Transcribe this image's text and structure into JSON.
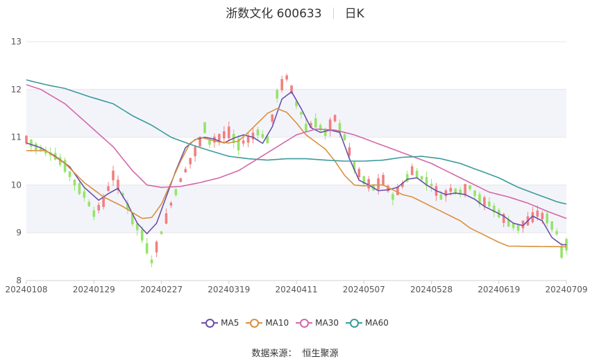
{
  "header": {
    "name": "浙数文化 600633",
    "period": "日K"
  },
  "footer": {
    "source_label": "数据来源：",
    "source_value": "恒生聚源"
  },
  "colors": {
    "up": "#f08080",
    "down": "#95e46a",
    "grid": "#e6e6e6",
    "band": "#f3f4fa"
  },
  "chart_data": {
    "type": "candlestick",
    "y_ticks": [
      8,
      9,
      10,
      11,
      12,
      13
    ],
    "ylim": [
      8,
      13
    ],
    "x_ticks": [
      "20240108",
      "20240129",
      "20240227",
      "20240319",
      "20240411",
      "20240507",
      "20240528",
      "20240619",
      "20240709"
    ],
    "x_tick_index": [
      0,
      14,
      28,
      42,
      56,
      70,
      84,
      98,
      112
    ],
    "n_bars": 113,
    "series": [
      {
        "name": "MA5",
        "color": "#6a4fa8",
        "anchors": [
          [
            0,
            10.88
          ],
          [
            3,
            10.78
          ],
          [
            6,
            10.6
          ],
          [
            9,
            10.38
          ],
          [
            12,
            9.95
          ],
          [
            15,
            9.68
          ],
          [
            17,
            9.82
          ],
          [
            19,
            9.93
          ],
          [
            21,
            9.6
          ],
          [
            23,
            9.2
          ],
          [
            25,
            8.98
          ],
          [
            27,
            9.2
          ],
          [
            29,
            9.75
          ],
          [
            31,
            10.3
          ],
          [
            33,
            10.78
          ],
          [
            35,
            10.95
          ],
          [
            37,
            11.0
          ],
          [
            39,
            10.96
          ],
          [
            41,
            10.88
          ],
          [
            43,
            10.98
          ],
          [
            45,
            11.05
          ],
          [
            47,
            11.0
          ],
          [
            49,
            10.87
          ],
          [
            51,
            11.22
          ],
          [
            53,
            11.8
          ],
          [
            55,
            11.95
          ],
          [
            57,
            11.6
          ],
          [
            59,
            11.2
          ],
          [
            61,
            11.1
          ],
          [
            63,
            11.15
          ],
          [
            65,
            11.1
          ],
          [
            67,
            10.55
          ],
          [
            69,
            10.1
          ],
          [
            71,
            10.0
          ],
          [
            73,
            9.88
          ],
          [
            75,
            9.9
          ],
          [
            77,
            9.95
          ],
          [
            79,
            10.12
          ],
          [
            81,
            10.15
          ],
          [
            83,
            10.0
          ],
          [
            85,
            9.88
          ],
          [
            87,
            9.8
          ],
          [
            89,
            9.83
          ],
          [
            91,
            9.8
          ],
          [
            93,
            9.7
          ],
          [
            95,
            9.55
          ],
          [
            97,
            9.45
          ],
          [
            99,
            9.35
          ],
          [
            101,
            9.2
          ],
          [
            103,
            9.15
          ],
          [
            105,
            9.35
          ],
          [
            107,
            9.25
          ],
          [
            109,
            8.9
          ],
          [
            111,
            8.75
          ],
          [
            113,
            8.75
          ],
          [
            115,
            8.85
          ],
          [
            117,
            8.75
          ],
          [
            118,
            8.55
          ]
        ]
      },
      {
        "name": "MA10",
        "color": "#d9913f",
        "anchors": [
          [
            0,
            10.72
          ],
          [
            4,
            10.72
          ],
          [
            8,
            10.45
          ],
          [
            12,
            10.05
          ],
          [
            16,
            9.75
          ],
          [
            20,
            9.55
          ],
          [
            24,
            9.3
          ],
          [
            26,
            9.32
          ],
          [
            28,
            9.6
          ],
          [
            30,
            10.05
          ],
          [
            32,
            10.5
          ],
          [
            34,
            10.88
          ],
          [
            36,
            11.0
          ],
          [
            38,
            10.95
          ],
          [
            40,
            10.9
          ],
          [
            42,
            10.88
          ],
          [
            44,
            10.92
          ],
          [
            46,
            11.1
          ],
          [
            48,
            11.3
          ],
          [
            50,
            11.5
          ],
          [
            52,
            11.6
          ],
          [
            54,
            11.52
          ],
          [
            56,
            11.3
          ],
          [
            58,
            11.05
          ],
          [
            60,
            10.9
          ],
          [
            62,
            10.75
          ],
          [
            64,
            10.5
          ],
          [
            66,
            10.2
          ],
          [
            68,
            10.0
          ],
          [
            70,
            9.98
          ],
          [
            72,
            10.0
          ],
          [
            74,
            10.0
          ],
          [
            76,
            9.9
          ],
          [
            78,
            9.8
          ],
          [
            80,
            9.75
          ],
          [
            82,
            9.65
          ],
          [
            84,
            9.55
          ],
          [
            86,
            9.45
          ],
          [
            88,
            9.35
          ],
          [
            90,
            9.25
          ],
          [
            92,
            9.1
          ],
          [
            94,
            9.0
          ],
          [
            96,
            8.9
          ],
          [
            98,
            8.8
          ],
          [
            100,
            8.72
          ],
          [
            118,
            8.7
          ]
        ]
      },
      {
        "name": "MA30",
        "color": "#d467a8",
        "anchors": [
          [
            0,
            12.1
          ],
          [
            3,
            12.0
          ],
          [
            8,
            11.7
          ],
          [
            13,
            11.25
          ],
          [
            18,
            10.8
          ],
          [
            22,
            10.3
          ],
          [
            25,
            10.0
          ],
          [
            28,
            9.95
          ],
          [
            32,
            9.97
          ],
          [
            36,
            10.05
          ],
          [
            40,
            10.15
          ],
          [
            44,
            10.3
          ],
          [
            48,
            10.55
          ],
          [
            52,
            10.8
          ],
          [
            56,
            11.05
          ],
          [
            60,
            11.17
          ],
          [
            64,
            11.15
          ],
          [
            68,
            11.05
          ],
          [
            72,
            10.9
          ],
          [
            76,
            10.75
          ],
          [
            80,
            10.6
          ],
          [
            84,
            10.45
          ],
          [
            88,
            10.25
          ],
          [
            92,
            10.05
          ],
          [
            96,
            9.85
          ],
          [
            100,
            9.75
          ],
          [
            104,
            9.62
          ],
          [
            108,
            9.45
          ],
          [
            112,
            9.3
          ],
          [
            116,
            9.15
          ],
          [
            118,
            9.03
          ]
        ]
      },
      {
        "name": "MA60",
        "color": "#3b9a9c",
        "anchors": [
          [
            0,
            12.2
          ],
          [
            4,
            12.1
          ],
          [
            8,
            12.02
          ],
          [
            13,
            11.85
          ],
          [
            18,
            11.7
          ],
          [
            22,
            11.45
          ],
          [
            26,
            11.25
          ],
          [
            30,
            11.0
          ],
          [
            34,
            10.85
          ],
          [
            38,
            10.72
          ],
          [
            42,
            10.6
          ],
          [
            46,
            10.55
          ],
          [
            50,
            10.52
          ],
          [
            54,
            10.55
          ],
          [
            58,
            10.55
          ],
          [
            62,
            10.52
          ],
          [
            66,
            10.5
          ],
          [
            70,
            10.5
          ],
          [
            74,
            10.52
          ],
          [
            78,
            10.58
          ],
          [
            82,
            10.6
          ],
          [
            86,
            10.55
          ],
          [
            90,
            10.45
          ],
          [
            94,
            10.3
          ],
          [
            98,
            10.15
          ],
          [
            102,
            9.95
          ],
          [
            106,
            9.8
          ],
          [
            110,
            9.65
          ],
          [
            114,
            9.55
          ],
          [
            118,
            9.47
          ]
        ]
      }
    ],
    "close_path": [
      [
        0,
        10.95
      ],
      [
        2,
        10.8
      ],
      [
        4,
        10.7
      ],
      [
        6,
        10.6
      ],
      [
        8,
        10.4
      ],
      [
        10,
        10.05
      ],
      [
        12,
        9.8
      ],
      [
        14,
        9.4
      ],
      [
        16,
        9.65
      ],
      [
        18,
        10.2
      ],
      [
        20,
        9.8
      ],
      [
        22,
        9.3
      ],
      [
        24,
        8.95
      ],
      [
        26,
        8.4
      ],
      [
        27,
        8.7
      ],
      [
        28,
        9.0
      ],
      [
        29,
        9.3
      ],
      [
        30,
        9.6
      ],
      [
        32,
        10.1
      ],
      [
        34,
        10.5
      ],
      [
        36,
        10.9
      ],
      [
        37,
        11.2
      ],
      [
        38,
        10.9
      ],
      [
        40,
        11.0
      ],
      [
        42,
        11.1
      ],
      [
        44,
        10.85
      ],
      [
        46,
        10.95
      ],
      [
        48,
        11.1
      ],
      [
        50,
        10.95
      ],
      [
        51,
        11.4
      ],
      [
        52,
        11.9
      ],
      [
        53,
        12.1
      ],
      [
        54,
        12.25
      ],
      [
        55,
        12.0
      ],
      [
        56,
        11.7
      ],
      [
        57,
        11.5
      ],
      [
        58,
        11.2
      ],
      [
        60,
        11.3
      ],
      [
        62,
        11.1
      ],
      [
        64,
        11.4
      ],
      [
        66,
        11.0
      ],
      [
        68,
        10.4
      ],
      [
        70,
        10.1
      ],
      [
        72,
        9.95
      ],
      [
        74,
        10.1
      ],
      [
        76,
        9.75
      ],
      [
        78,
        10.0
      ],
      [
        80,
        10.3
      ],
      [
        82,
        10.15
      ],
      [
        84,
        10.0
      ],
      [
        86,
        9.75
      ],
      [
        88,
        9.9
      ],
      [
        90,
        9.85
      ],
      [
        92,
        9.95
      ],
      [
        94,
        9.7
      ],
      [
        96,
        9.6
      ],
      [
        98,
        9.4
      ],
      [
        100,
        9.2
      ],
      [
        102,
        9.1
      ],
      [
        104,
        9.25
      ],
      [
        106,
        9.4
      ],
      [
        108,
        9.3
      ],
      [
        110,
        9.0
      ],
      [
        111,
        8.6
      ],
      [
        112,
        8.75
      ],
      [
        114,
        8.8
      ],
      [
        116,
        8.9
      ],
      [
        117,
        8.65
      ],
      [
        118,
        8.4
      ]
    ]
  }
}
